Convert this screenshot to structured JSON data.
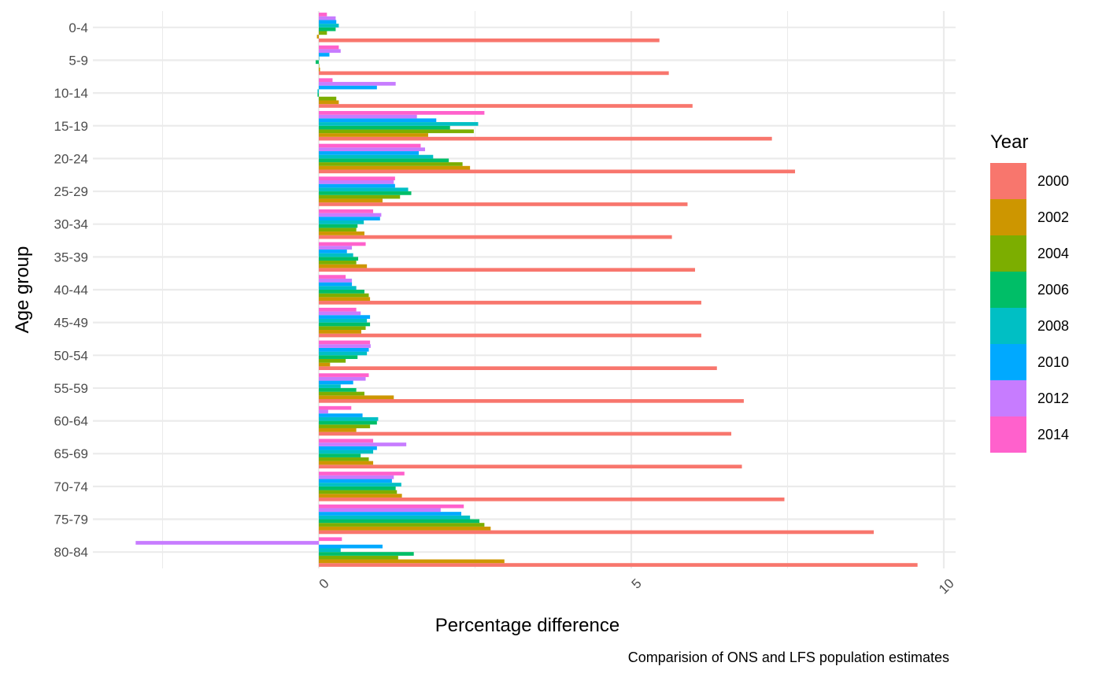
{
  "chart_data": {
    "type": "bar",
    "orientation": "horizontal",
    "xlabel": "Percentage difference",
    "ylabel": "Age group",
    "caption": "Comparision of ONS and LFS population estimates",
    "legend_title": "Year",
    "legend_position": "right",
    "xlim": [
      -5.0,
      10.3
    ],
    "x_ticks": [
      0,
      5,
      10
    ],
    "x_tick_labels": [
      "0",
      "5",
      "10"
    ],
    "grid": true,
    "categories": [
      "0-4",
      "5-9",
      "10-14",
      "15-19",
      "20-24",
      "25-29",
      "30-34",
      "35-39",
      "40-44",
      "45-49",
      "50-54",
      "55-59",
      "60-64",
      "65-69",
      "70-74",
      "75-79",
      "80-84"
    ],
    "series": [
      {
        "name": "2000",
        "color": "#F8766D",
        "values": [
          5.45,
          5.6,
          5.98,
          7.25,
          7.62,
          5.9,
          5.65,
          6.02,
          6.12,
          6.12,
          6.37,
          6.8,
          6.6,
          6.77,
          7.45,
          8.88,
          9.58
        ]
      },
      {
        "name": "2002",
        "color": "#CD9600",
        "values": [
          -0.03,
          0.02,
          0.32,
          1.75,
          2.42,
          1.02,
          0.73,
          0.77,
          0.82,
          0.68,
          0.18,
          1.2,
          0.6,
          0.87,
          1.33,
          2.75,
          2.97
        ]
      },
      {
        "name": "2004",
        "color": "#7CAE00",
        "values": [
          0.13,
          0.0,
          0.28,
          2.48,
          2.3,
          1.3,
          0.6,
          0.6,
          0.8,
          0.75,
          0.43,
          0.73,
          0.82,
          0.8,
          1.25,
          2.65,
          1.27
        ]
      },
      {
        "name": "2006",
        "color": "#00BE67",
        "values": [
          0.27,
          -0.05,
          -0.02,
          2.1,
          2.08,
          1.48,
          0.62,
          0.63,
          0.73,
          0.82,
          0.62,
          0.6,
          0.93,
          0.67,
          1.23,
          2.57,
          1.52
        ]
      },
      {
        "name": "2008",
        "color": "#00BFC4",
        "values": [
          0.32,
          0.0,
          -0.02,
          2.55,
          1.83,
          1.43,
          0.72,
          0.55,
          0.6,
          0.77,
          0.77,
          0.35,
          0.95,
          0.87,
          1.32,
          2.42,
          0.35
        ]
      },
      {
        "name": "2010",
        "color": "#00A9FF",
        "values": [
          0.28,
          0.17,
          0.93,
          1.88,
          1.6,
          1.22,
          0.98,
          0.45,
          0.53,
          0.82,
          0.8,
          0.55,
          0.7,
          0.93,
          1.17,
          2.28,
          1.02
        ]
      },
      {
        "name": "2012",
        "color": "#C77CFF",
        "values": [
          0.27,
          0.35,
          1.23,
          1.57,
          1.7,
          1.2,
          1.0,
          0.53,
          0.53,
          0.67,
          0.83,
          0.75,
          0.15,
          1.4,
          1.2,
          1.95,
          -2.93
        ]
      },
      {
        "name": "2014",
        "color": "#FF61CC",
        "values": [
          0.13,
          0.32,
          0.22,
          2.65,
          1.63,
          1.22,
          0.87,
          0.75,
          0.43,
          0.6,
          0.82,
          0.8,
          0.52,
          0.87,
          1.37,
          2.32,
          0.37
        ]
      }
    ]
  }
}
